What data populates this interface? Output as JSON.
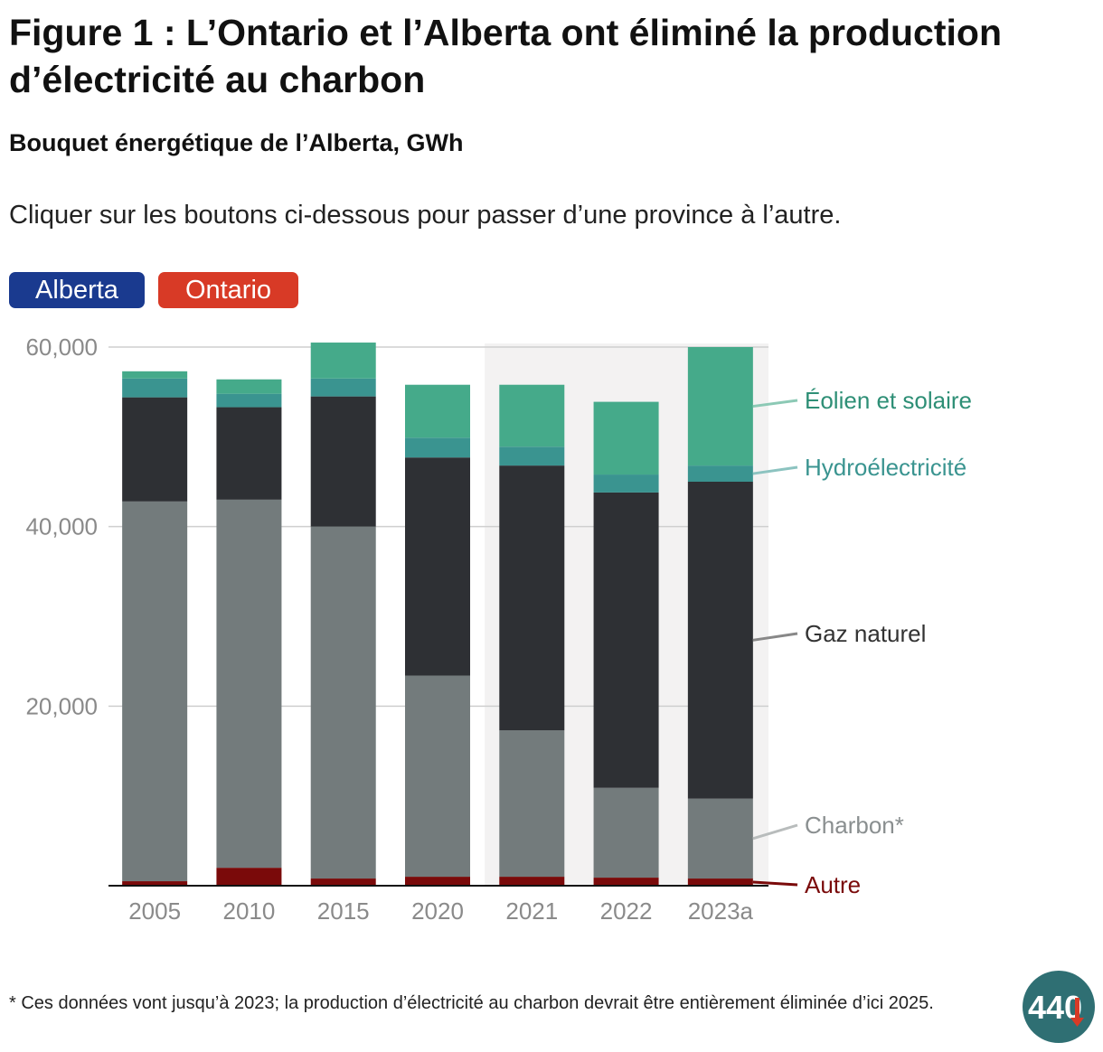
{
  "header": {
    "title": "Figure 1 : L’Ontario et l’Alberta ont éliminé la production d’électricité au charbon",
    "subtitle": "Bouquet énergétique de l’Alberta, GWh",
    "instruction": "Cliquer sur les boutons ci-dessous pour passer d’une province à l’autre."
  },
  "buttons": {
    "alberta": "Alberta",
    "ontario": "Ontario"
  },
  "colors": {
    "alberta_button": "#1a3a8f",
    "ontario_button": "#d83a26",
    "autre": "#7a0a0a",
    "charbon": "#737b7c",
    "gaz": "#2e3034",
    "hydro": "#3a9490",
    "eolien": "#45aa8a",
    "projection_shade": "#f3f2f2"
  },
  "chart_data": {
    "type": "bar",
    "stacked": true,
    "title": "Bouquet énergétique de l’Alberta, GWh",
    "categories": [
      "2005",
      "2010",
      "2015",
      "2020",
      "2021",
      "2022",
      "2023a"
    ],
    "ylim": [
      0,
      60000
    ],
    "yticks": [
      20000,
      40000,
      60000
    ],
    "ytick_labels": [
      "20,000",
      "40,000",
      "60,000"
    ],
    "grid": true,
    "highlighted_categories": [
      "2021",
      "2022",
      "2023a"
    ],
    "series": [
      {
        "name": "Autre",
        "color": "#7a0a0a",
        "values": [
          500,
          2000,
          800,
          1000,
          1000,
          900,
          800
        ]
      },
      {
        "name": "Charbon*",
        "color": "#737b7c",
        "values": [
          42300,
          41000,
          39200,
          22400,
          16300,
          10000,
          8900
        ]
      },
      {
        "name": "Gaz naturel",
        "color": "#2e3034",
        "values": [
          11600,
          10300,
          14500,
          24300,
          29500,
          32900,
          35300
        ]
      },
      {
        "name": "Hydroélectricité",
        "color": "#3a9490",
        "values": [
          2100,
          1500,
          2000,
          2200,
          2100,
          2000,
          1800
        ]
      },
      {
        "name": "Éolien et solaire",
        "color": "#45aa8a",
        "values": [
          800,
          1600,
          4000,
          5900,
          6900,
          8100,
          13200
        ]
      }
    ]
  },
  "footnote": "* Ces données vont jusqu’à 2023; la production d’électricité au charbon devrait être entièrement éliminée d’ici 2025.",
  "logo": {
    "text": "440"
  }
}
